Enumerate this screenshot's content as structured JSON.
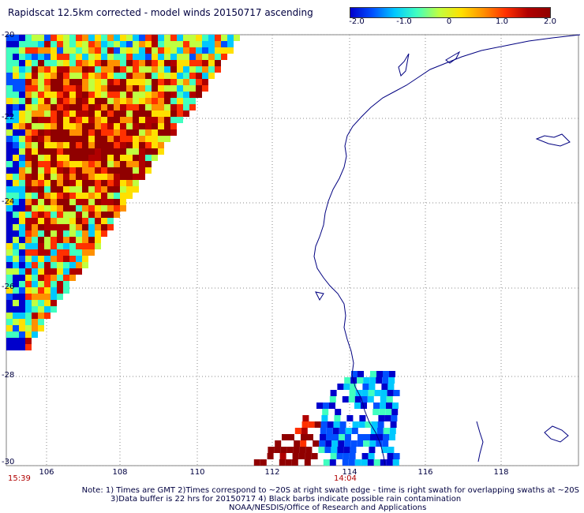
{
  "title": "Rapidscat 12.5km corrected - model winds 20150717 ascending",
  "colorbar": {
    "ticks": [
      "-2.0",
      "-1.0",
      "0",
      "1.0",
      "2.0"
    ],
    "colors": [
      "#0000cc",
      "#0050ff",
      "#00c8ff",
      "#40ffc0",
      "#c0ff40",
      "#ffe000",
      "#ff9000",
      "#ff3000",
      "#b00000",
      "#900000"
    ]
  },
  "y_axis_labels": [
    "-20",
    "-22",
    "-24",
    "-26",
    "-28",
    "-30"
  ],
  "x_axis_labels": [
    "106",
    "108",
    "110",
    "112",
    "114",
    "116",
    "118"
  ],
  "swath_times": {
    "left": "15:39",
    "center": "14:04"
  },
  "notes": [
    "Note: 1) Times are GMT 2)Times correspond to ~20S at right swath edge - time is right swath for overlapping swaths at ~20S",
    "3)Data buffer is 22 hrs for 20150717 4) Black barbs indicate possible rain contamination",
    "NOAA/NESDIS/Office of Research and Applications"
  ]
}
